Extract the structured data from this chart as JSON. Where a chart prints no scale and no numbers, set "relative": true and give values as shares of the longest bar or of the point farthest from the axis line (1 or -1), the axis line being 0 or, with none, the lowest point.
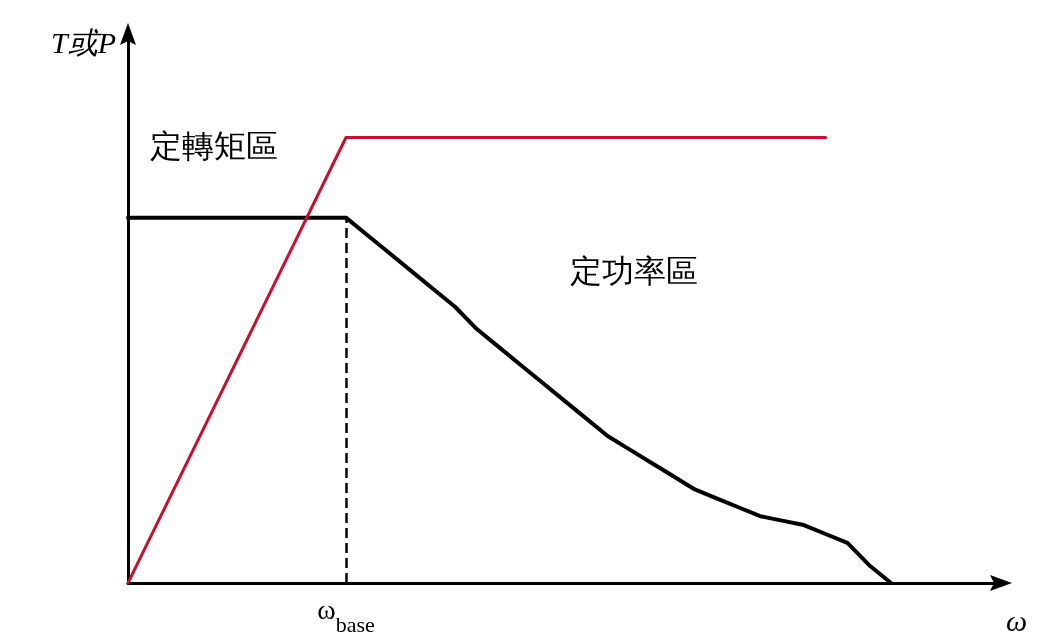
{
  "chart_data": {
    "type": "line",
    "relative": true,
    "xlabel": "ω",
    "ylabel": "T或P",
    "categories": [
      null,
      null,
      null,
      null,
      null,
      null,
      null,
      null,
      null,
      null,
      null,
      null,
      null,
      null,
      null,
      null,
      null,
      null,
      null,
      null,
      null,
      null,
      null,
      null,
      null,
      null,
      null,
      null,
      null,
      null,
      null,
      null,
      null,
      null,
      null,
      null,
      null,
      null,
      null,
      null,
      null
    ],
    "series": [
      {
        "color": "#000000",
        "values": [
          0.82,
          0.82,
          0.82,
          0.82,
          0.82,
          0.82,
          0.82,
          0.82,
          0.82,
          0.82,
          0.82,
          0.78,
          0.74,
          0.7,
          0.66,
          0.62,
          0.57,
          0.53,
          0.49,
          0.45,
          0.41,
          0.37,
          0.33,
          0.3,
          0.27,
          0.24,
          0.21,
          0.19,
          0.17,
          0.15,
          0.14,
          0.13,
          0.11,
          0.09,
          0.04,
          0,
          null,
          null,
          null,
          null,
          null
        ]
      },
      {
        "color": "#c8102e",
        "values": [
          0,
          0.1,
          0.2,
          0.3,
          0.4,
          0.5,
          0.6,
          0.7,
          0.8,
          0.9,
          1,
          1,
          1,
          1,
          1,
          1,
          1,
          1,
          1,
          1,
          1,
          1,
          1,
          1,
          1,
          1,
          1,
          1,
          1,
          1,
          1,
          1,
          1,
          null,
          null,
          null,
          null,
          null,
          null,
          null,
          null
        ]
      }
    ],
    "annotations": [
      "定轉矩區",
      "定功率區",
      "ω$_{base}$"
    ],
    "marker": "none",
    "line_style": "solid",
    "grid": false
  }
}
